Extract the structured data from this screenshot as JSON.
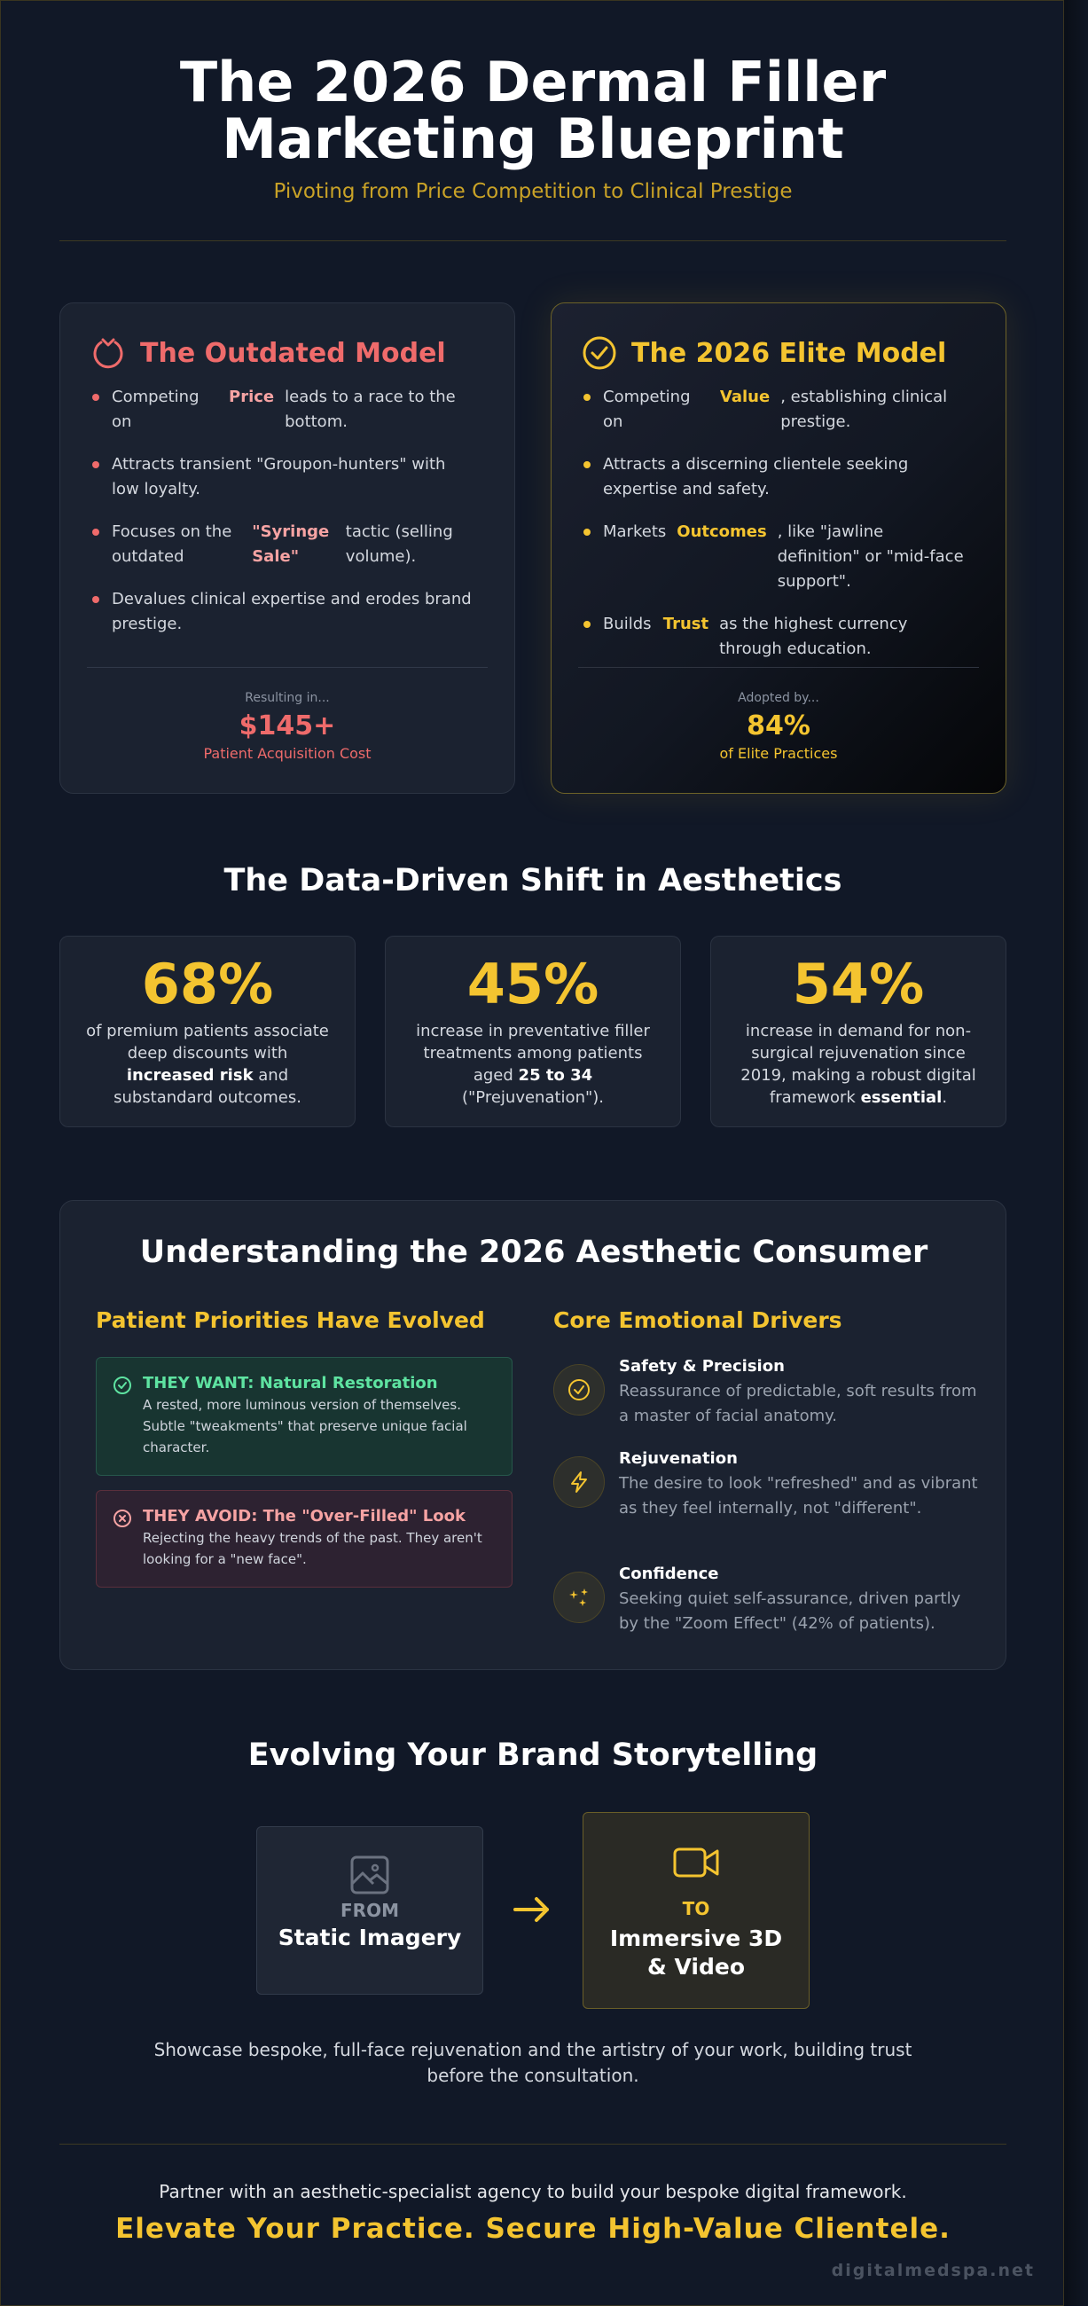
{
  "header": {
    "title_line1": "The 2026 Dermal Filler",
    "title_line2": "Marketing Blueprint",
    "subtitle": "Pivoting from Price Competition to Clinical Prestige"
  },
  "outdated": {
    "title": "The Outdated Model",
    "b1_pre": "Competing on",
    "b1_hl": "Price",
    "b1_post": "leads to a race to the bottom.",
    "b2": "Attracts transient \"Groupon-hunters\" with low loyalty.",
    "b3_pre": "Focuses on the outdated",
    "b3_hl": "\"Syringe Sale\"",
    "b3_post": "tactic (selling volume).",
    "b4": "Devalues clinical expertise and erodes brand prestige.",
    "foot_small": "Resulting in...",
    "foot_big": "$145+",
    "foot_note": "Patient Acquisition Cost"
  },
  "elite": {
    "title": "The 2026 Elite Model",
    "b1_pre": "Competing on",
    "b1_hl": "Value",
    "b1_post": ", establishing clinical prestige.",
    "b2": "Attracts a discerning clientele seeking expertise and safety.",
    "b3_pre": "Markets",
    "b3_hl": "Outcomes",
    "b3_post": ", like \"jawline definition\" or \"mid-face support\".",
    "b4_pre": "Builds",
    "b4_hl": "Trust",
    "b4_post": "as the highest currency through education.",
    "foot_small": "Adopted by...",
    "foot_big": "84%",
    "foot_note": "of Elite Practices"
  },
  "shift": {
    "title": "The Data-Driven Shift in Aesthetics",
    "s1_num": "68%",
    "s1_a": "of premium patients associate deep discounts with",
    "s1_b": "increased risk",
    "s1_c": "and substandard outcomes.",
    "s2_num": "45%",
    "s2_a": "increase in preventative filler treatments among patients aged",
    "s2_b": "25 to 34",
    "s2_c": "(\"Prejuvenation\").",
    "s3_num": "54%",
    "s3_a": "increase in demand for non-surgical rejuvenation since 2019, making a robust digital framework",
    "s3_b": "essential",
    "s3_c": "."
  },
  "consumer": {
    "title": "Understanding the 2026 Aesthetic Consumer",
    "priorities_head": "Patient Priorities Have Evolved",
    "want_head": "THEY WANT: Natural Restoration",
    "want_text": "A rested, more luminous version of themselves. Subtle \"tweakments\" that preserve unique facial character.",
    "avoid_head": "THEY AVOID: The \"Over-Filled\" Look",
    "avoid_text": "Rejecting the heavy trends of the past. They aren't looking for a \"new face\".",
    "drivers_head": "Core Emotional Drivers",
    "d1_head": "Safety & Precision",
    "d1_text": "Reassurance of predictable, soft results from a master of facial anatomy.",
    "d2_head": "Rejuvenation",
    "d2_text": "The desire to look \"refreshed\" and as vibrant as they feel internally, not \"different\".",
    "d3_head": "Confidence",
    "d3_text": "Seeking quiet self-assurance, driven partly by the \"Zoom Effect\" (42% of patients)."
  },
  "story": {
    "title": "Evolving Your Brand Storytelling",
    "from_label": "FROM",
    "from_value": "Static Imagery",
    "to_label": "TO",
    "to_value_1": "Immersive 3D",
    "to_value_2": "& Video",
    "text": "Showcase bespoke, full-face rejuvenation and the artistry of your work, building trust before the consultation."
  },
  "cta": {
    "text": "Partner with an aesthetic-specialist agency to build your bespoke digital framework.",
    "headline": "Elevate Your Practice. Secure High-Value Clientele.",
    "brand": "digitalmedspa.net"
  },
  "colors": {
    "background": "#111827",
    "gold": "#f4c430",
    "red": "#ef6b6b",
    "green": "#5ee3a1"
  },
  "icons": [
    "price-down-icon",
    "check-circle-icon",
    "check-circle-small-icon",
    "x-circle-icon",
    "lightning-icon",
    "sparkles-icon",
    "image-icon",
    "arrow-right-icon",
    "video-camera-icon"
  ]
}
